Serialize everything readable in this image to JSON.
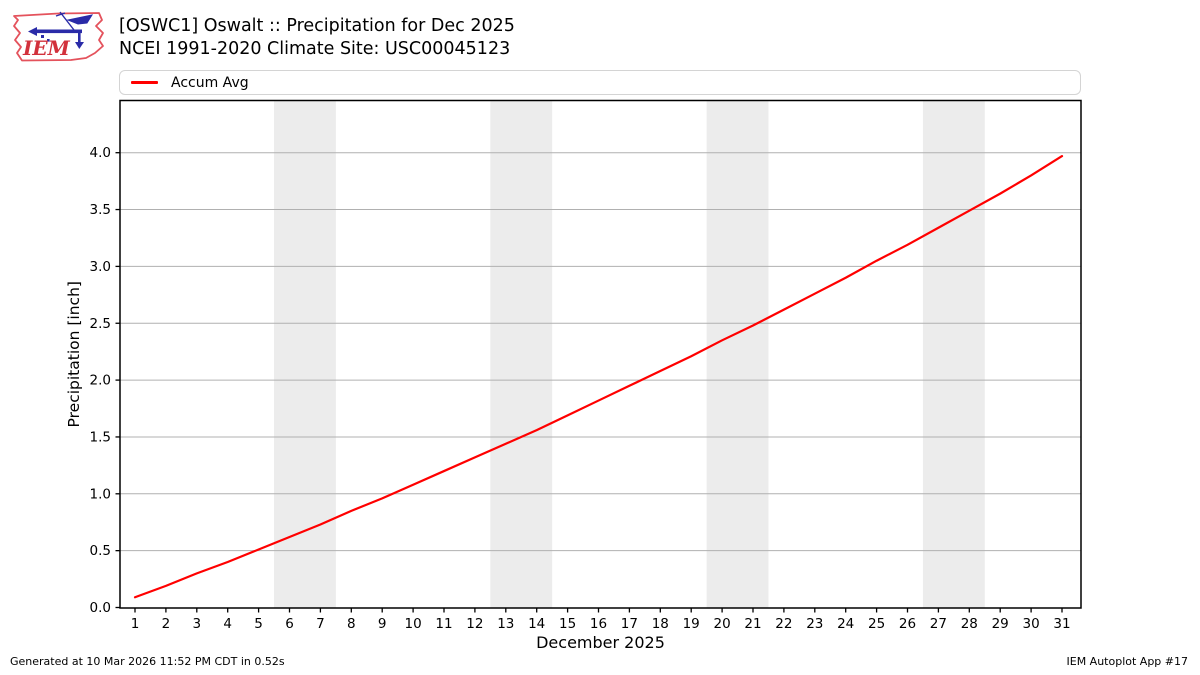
{
  "header": {
    "title_line1": "[OSWC1] Oswalt :: Precipitation for Dec 2025",
    "title_line2": "NCEI 1991-2020 Climate Site: USC00045123",
    "logo_text": "IEM"
  },
  "legend": {
    "items": [
      {
        "label": "Accum Avg",
        "color": "#ff0000"
      }
    ]
  },
  "chart_data": {
    "type": "line",
    "title": "[OSWC1] Oswalt :: Precipitation for Dec 2025",
    "subtitle": "NCEI 1991-2020 Climate Site: USC00045123",
    "xlabel": "December 2025",
    "ylabel": "Precipitation [inch]",
    "x": [
      1,
      2,
      3,
      4,
      5,
      6,
      7,
      8,
      9,
      10,
      11,
      12,
      13,
      14,
      15,
      16,
      17,
      18,
      19,
      20,
      21,
      22,
      23,
      24,
      25,
      26,
      27,
      28,
      29,
      30,
      31
    ],
    "series": [
      {
        "name": "Accum Avg",
        "color": "#ff0000",
        "values": [
          0.09,
          0.19,
          0.3,
          0.4,
          0.51,
          0.62,
          0.73,
          0.85,
          0.96,
          1.08,
          1.2,
          1.32,
          1.44,
          1.56,
          1.69,
          1.82,
          1.95,
          2.08,
          2.21,
          2.35,
          2.48,
          2.62,
          2.76,
          2.9,
          3.05,
          3.19,
          3.34,
          3.49,
          3.64,
          3.8,
          3.97
        ]
      }
    ],
    "xticks": [
      1,
      2,
      3,
      4,
      5,
      6,
      7,
      8,
      9,
      10,
      11,
      12,
      13,
      14,
      15,
      16,
      17,
      18,
      19,
      20,
      21,
      22,
      23,
      24,
      25,
      26,
      27,
      28,
      29,
      30,
      31
    ],
    "yticks": [
      0.0,
      0.5,
      1.0,
      1.5,
      2.0,
      2.5,
      3.0,
      3.5,
      4.0
    ],
    "ylim": [
      0,
      4.46
    ],
    "xlim": [
      0.51,
      31.61
    ],
    "grid": "horizontal",
    "grid_color": "#b0b0b0",
    "weekend_bands": [
      [
        5.5,
        7.5
      ],
      [
        12.5,
        14.5
      ],
      [
        19.5,
        21.5
      ],
      [
        26.5,
        28.5
      ]
    ],
    "band_color": "#ececec",
    "legend_position": "top"
  },
  "footer": {
    "left": "Generated at 10 Mar 2026 11:52 PM CDT in 0.52s",
    "right": "IEM Autoplot App #17"
  }
}
